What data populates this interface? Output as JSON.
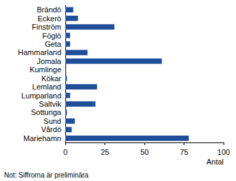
{
  "chart_data": {
    "type": "bar",
    "orientation": "horizontal",
    "categories": [
      "Brändö",
      "Eckerö",
      "Finström",
      "Föglö",
      "Geta",
      "Hammarland",
      "Jomala",
      "Kumlinge",
      "Kökar",
      "Lemland",
      "Lumparland",
      "Saltvik",
      "Sottunga",
      "Sund",
      "Vårdö",
      "Mariehamn"
    ],
    "values": [
      5,
      8,
      31,
      3,
      3,
      14,
      61,
      0,
      1,
      20,
      3,
      19,
      1,
      6,
      4,
      78
    ],
    "color": "#1f4e99",
    "x_label": "Antal",
    "annotation": "Not: Siffrorna är preliminära",
    "xlim": [
      0,
      100
    ],
    "xticks": [
      0,
      25,
      50,
      75,
      100
    ],
    "grid": false
  }
}
